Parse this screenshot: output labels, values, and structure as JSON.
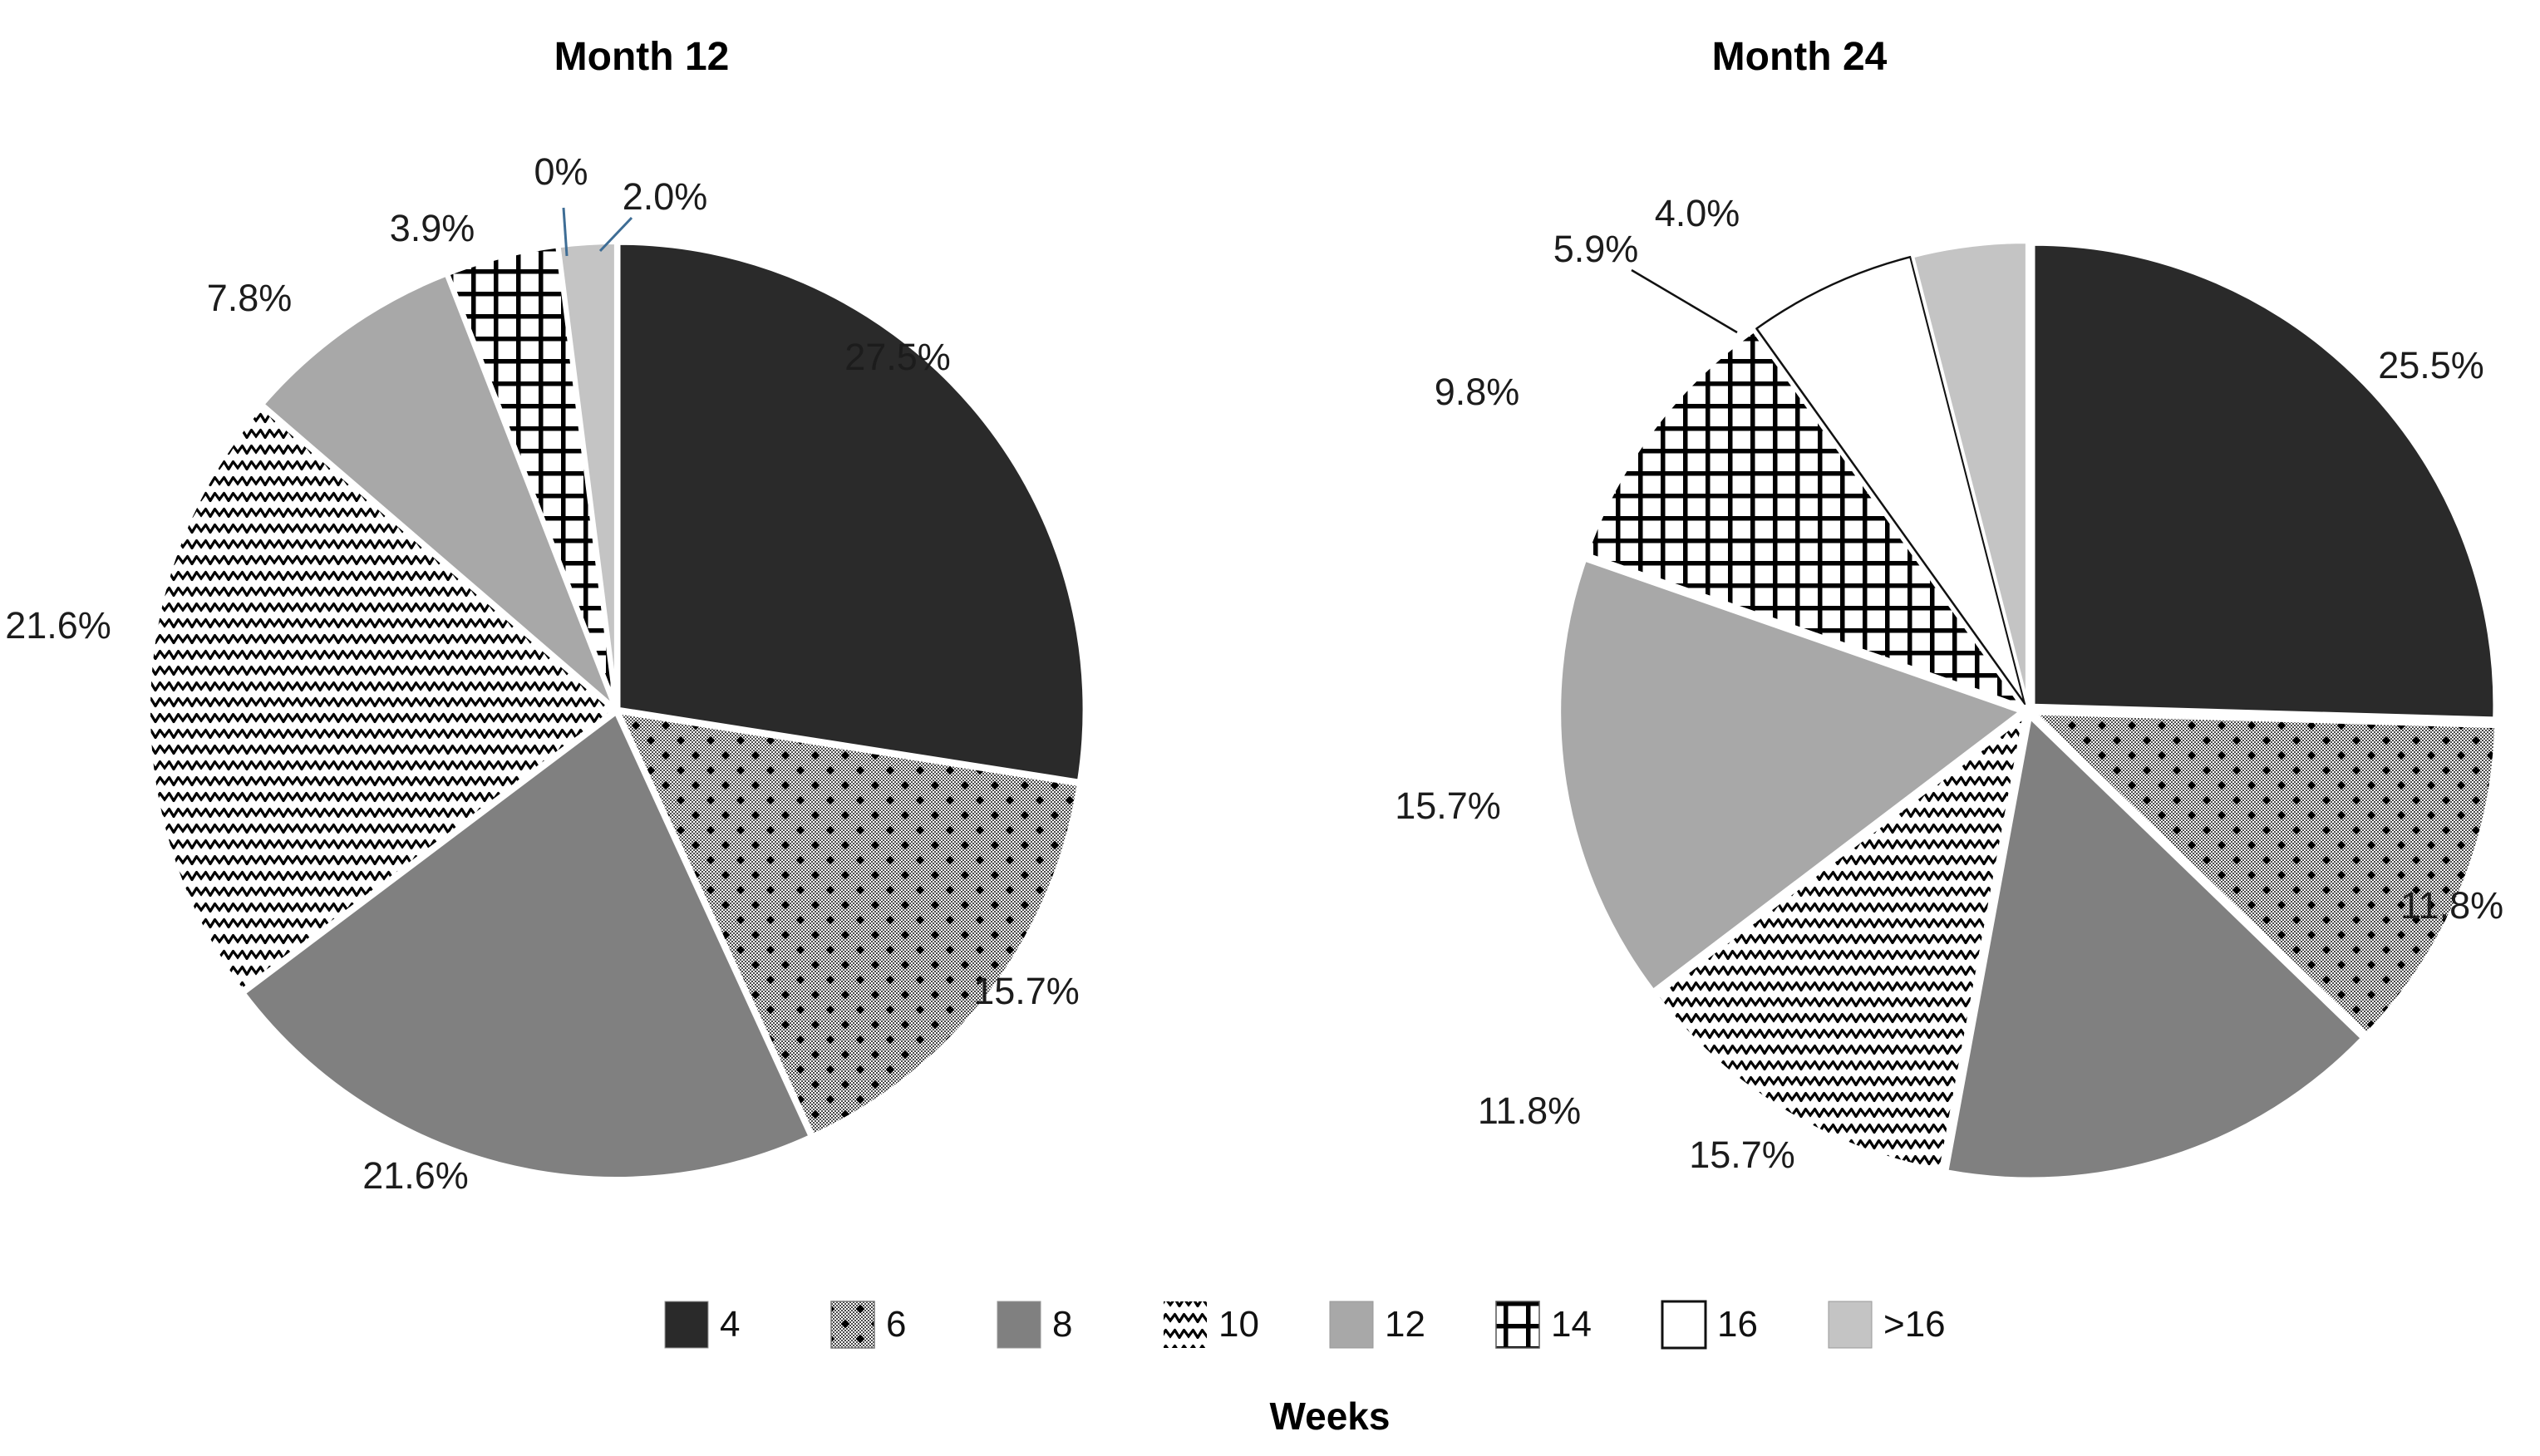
{
  "chart_data": [
    {
      "type": "pie",
      "title": "Month 12",
      "unit": "percent",
      "categories_label": "Weeks",
      "slices": [
        {
          "category": "4",
          "value": 27.5,
          "label": "27.5%"
        },
        {
          "category": "6",
          "value": 15.7,
          "label": "15.7%"
        },
        {
          "category": "8",
          "value": 21.6,
          "label": "21.6%"
        },
        {
          "category": "10",
          "value": 21.6,
          "label": "21.6%"
        },
        {
          "category": "12",
          "value": 7.8,
          "label": "7.8%"
        },
        {
          "category": "14",
          "value": 3.9,
          "label": "3.9%"
        },
        {
          "category": "16",
          "value": 0,
          "label": "0%"
        },
        {
          "category": ">16",
          "value": 2.0,
          "label": "2.0%"
        }
      ]
    },
    {
      "type": "pie",
      "title": "Month 24",
      "unit": "percent",
      "categories_label": "Weeks",
      "slices": [
        {
          "category": "4",
          "value": 25.5,
          "label": "25.5%"
        },
        {
          "category": "6",
          "value": 11.8,
          "label": "11.8%"
        },
        {
          "category": "8",
          "value": 15.7,
          "label": "15.7%"
        },
        {
          "category": "10",
          "value": 11.8,
          "label": "11.8%"
        },
        {
          "category": "12",
          "value": 15.7,
          "label": "15.7%"
        },
        {
          "category": "14",
          "value": 9.8,
          "label": "9.8%"
        },
        {
          "category": "16",
          "value": 5.9,
          "label": "5.9%"
        },
        {
          "category": ">16",
          "value": 4.0,
          "label": "4.0%"
        }
      ]
    }
  ],
  "legend": {
    "title": "Weeks",
    "entries": [
      "4",
      "6",
      "8",
      "10",
      "12",
      "14",
      "16",
      ">16"
    ]
  },
  "styles": {
    "slice_fill_colors": {
      "4": "#2a2a2a",
      "8": "#808080",
      "12": "#a8a8a8",
      "16": "#ffffff",
      ">16": "#c4c4c4"
    },
    "slice_patterns": {
      "6": "checker-diamond-dots",
      "10": "zigzag-waves",
      "14": "crosshatch-grid",
      "16": "white-black-outline"
    },
    "leader_line_blue": "#3e6d95",
    "leader_line_black": "#111111",
    "label_text": "#1c1c1c",
    "background": "#ffffff"
  }
}
